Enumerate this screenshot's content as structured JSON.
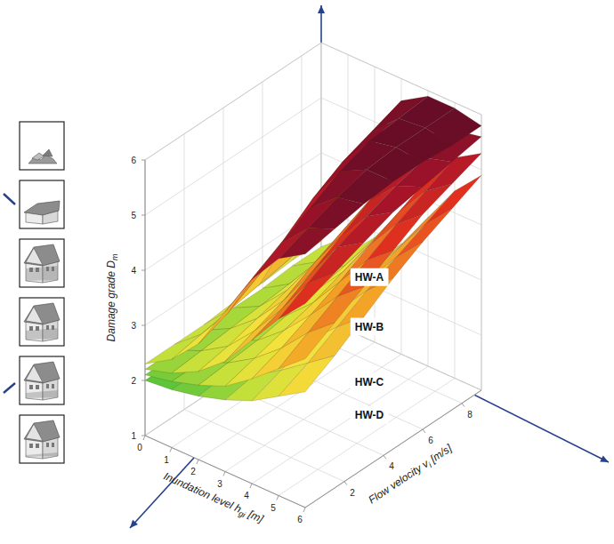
{
  "chart_data": {
    "type": "surface",
    "xlabel": {
      "text": "Inundation level h",
      "sub": "gi",
      "after": " [m]"
    },
    "ylabel": {
      "text": "Flow velocity v",
      "sub": "i",
      "after": " [m/s]"
    },
    "zlabel": {
      "text": "Damage grade D",
      "sub": "m"
    },
    "x": [
      0,
      1,
      2,
      3,
      4,
      5,
      6
    ],
    "y": [
      0,
      1.5,
      3,
      4.5,
      6,
      7.5,
      9
    ],
    "xlim": [
      0,
      6
    ],
    "ylim": [
      0,
      9
    ],
    "zlim": [
      1,
      6
    ],
    "xticks": [
      0,
      1,
      2,
      3,
      4,
      5,
      6
    ],
    "yticks": [
      2,
      4,
      6,
      8
    ],
    "zticks": [
      1,
      2,
      3,
      4,
      5,
      6
    ],
    "grid": true,
    "series": [
      {
        "name": "HW-A",
        "values": [
          [
            2.3,
            2.6,
            3.1,
            3.9,
            4.7,
            5.3,
            5.6
          ],
          [
            2.3,
            2.7,
            3.3,
            4.2,
            5.0,
            5.5,
            5.7
          ],
          [
            2.3,
            2.8,
            3.6,
            4.5,
            5.3,
            5.7,
            5.8
          ],
          [
            2.35,
            2.9,
            3.9,
            4.9,
            5.6,
            5.85,
            5.85
          ],
          [
            2.35,
            3.0,
            4.2,
            5.2,
            5.8,
            5.9,
            5.85
          ],
          [
            2.4,
            3.15,
            4.4,
            5.4,
            5.85,
            5.9,
            5.8
          ],
          [
            2.4,
            3.3,
            4.6,
            5.6,
            5.9,
            5.9,
            5.8
          ]
        ]
      },
      {
        "name": "HW-B",
        "values": [
          [
            2.2,
            2.35,
            2.6,
            3.0,
            3.6,
            4.2,
            4.7
          ],
          [
            2.2,
            2.4,
            2.7,
            3.2,
            3.8,
            4.5,
            4.9
          ],
          [
            2.2,
            2.45,
            2.85,
            3.4,
            4.1,
            4.8,
            5.1
          ],
          [
            2.25,
            2.5,
            3.0,
            3.7,
            4.4,
            5.0,
            5.3
          ],
          [
            2.25,
            2.55,
            3.15,
            3.95,
            4.7,
            5.2,
            5.4
          ],
          [
            2.3,
            2.6,
            3.3,
            4.2,
            4.95,
            5.35,
            5.5
          ],
          [
            2.3,
            2.7,
            3.5,
            4.5,
            5.2,
            5.5,
            5.6
          ]
        ]
      },
      {
        "name": "HW-C",
        "values": [
          [
            2.1,
            2.2,
            2.35,
            2.55,
            2.9,
            3.3,
            3.7
          ],
          [
            2.1,
            2.2,
            2.4,
            2.7,
            3.1,
            3.6,
            4.0
          ],
          [
            2.1,
            2.25,
            2.45,
            2.85,
            3.35,
            3.9,
            4.3
          ],
          [
            2.15,
            2.25,
            2.55,
            3.0,
            3.6,
            4.2,
            4.6
          ],
          [
            2.15,
            2.3,
            2.65,
            3.2,
            3.9,
            4.5,
            4.9
          ],
          [
            2.2,
            2.35,
            2.75,
            3.4,
            4.15,
            4.75,
            5.1
          ],
          [
            2.2,
            2.4,
            2.9,
            3.6,
            4.4,
            5.0,
            5.3
          ]
        ]
      },
      {
        "name": "HW-D",
        "values": [
          [
            2.0,
            2.05,
            2.15,
            2.3,
            2.5,
            2.8,
            3.1
          ],
          [
            2.0,
            2.05,
            2.2,
            2.4,
            2.7,
            3.05,
            3.4
          ],
          [
            2.0,
            2.1,
            2.25,
            2.5,
            2.9,
            3.35,
            3.75
          ],
          [
            2.05,
            2.1,
            2.3,
            2.6,
            3.1,
            3.65,
            4.1
          ],
          [
            2.05,
            2.15,
            2.35,
            2.75,
            3.3,
            3.9,
            4.4
          ],
          [
            2.1,
            2.15,
            2.4,
            2.85,
            3.5,
            4.15,
            4.65
          ],
          [
            2.1,
            2.2,
            2.5,
            3.0,
            3.7,
            4.4,
            4.9
          ]
        ]
      }
    ]
  }
}
